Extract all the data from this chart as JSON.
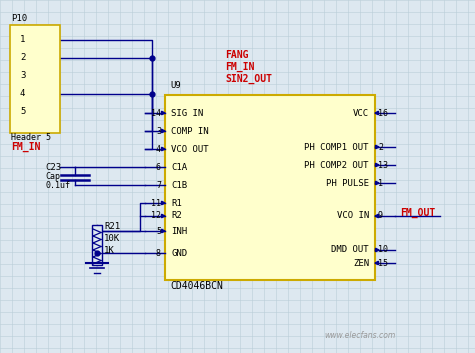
{
  "bg_color": "#dde8f0",
  "grid_color": "#baced8",
  "line_color": "#00008b",
  "red_color": "#cc0000",
  "yellow_fill": "#ffffcc",
  "yellow_stroke": "#ccaa00",
  "black": "#000000",
  "watermark": "www.elecfans.com",
  "header_label": "P10",
  "header_subtext": "Header 5",
  "fm_in_label": "FM_IN",
  "fang_label": "FANG",
  "fm_in_label2": "FM_IN",
  "sin2_out_label": "SIN2_OUT",
  "u9_label": "U9",
  "chip_name": "CD4046BCN",
  "fm_out_label": "FM_OUT",
  "cap_label": "C23",
  "cap_type": "Cap",
  "cap_val": "0.1uf",
  "res_label": "R21",
  "res_val1": "10K",
  "res_val2": "1K"
}
